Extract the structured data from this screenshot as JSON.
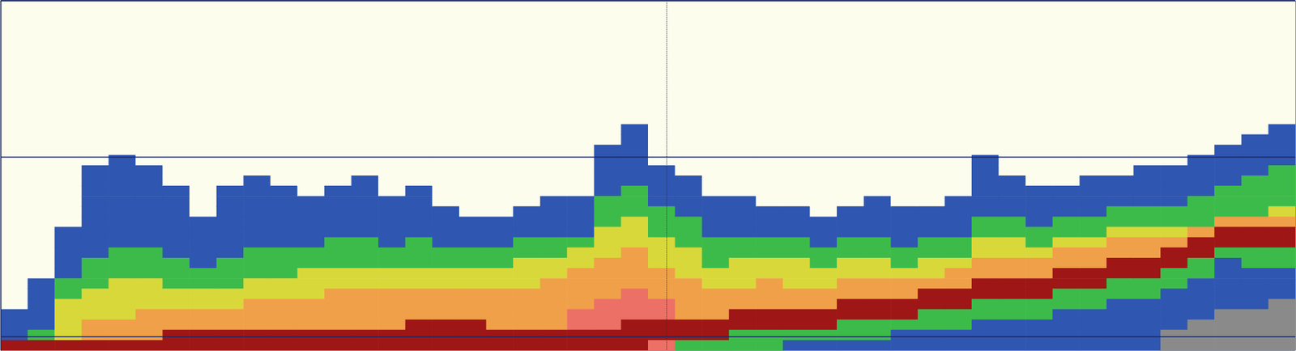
{
  "chart_data": {
    "type": "heatmap",
    "xlim": [
      0,
      48
    ],
    "ylim": [
      0,
      42.5
    ],
    "xticks": [
      24.7
    ],
    "yticks": [
      0,
      19,
      40.8
    ],
    "grid": true,
    "tick_labels": false,
    "cell_width": 1,
    "cell_height": 1.25,
    "colors": [
      "#fdfdee",
      "#8a8a8a",
      "#2f56b0",
      "#3dbb4a",
      "#d9d83a",
      "#f0a048",
      "#ec7066",
      "#9e1616"
    ],
    "cells": [
      [
        0,
        0,
        0,
        0,
        0,
        0,
        0,
        0,
        0,
        0,
        0,
        0,
        0,
        0,
        0,
        0,
        0,
        0,
        0,
        0,
        0,
        0,
        0,
        0,
        0,
        0,
        0,
        0,
        0,
        0,
        2,
        2,
        2,
        7
      ],
      [
        0,
        0,
        0,
        0,
        0,
        0,
        0,
        0,
        0,
        0,
        0,
        0,
        0,
        0,
        0,
        0,
        0,
        0,
        0,
        0,
        0,
        0,
        0,
        0,
        0,
        0,
        0,
        2,
        2,
        2,
        2,
        2,
        3,
        7
      ],
      [
        0,
        0,
        0,
        0,
        0,
        0,
        0,
        0,
        0,
        0,
        0,
        0,
        0,
        0,
        0,
        0,
        0,
        0,
        0,
        0,
        0,
        0,
        2,
        2,
        2,
        2,
        2,
        3,
        3,
        4,
        4,
        4,
        4,
        7
      ],
      [
        0,
        0,
        0,
        0,
        0,
        0,
        0,
        0,
        0,
        0,
        0,
        0,
        0,
        0,
        0,
        0,
        2,
        2,
        2,
        2,
        2,
        2,
        2,
        2,
        2,
        3,
        3,
        3,
        4,
        4,
        4,
        5,
        5,
        7
      ],
      [
        0,
        0,
        0,
        0,
        0,
        0,
        0,
        0,
        0,
        0,
        0,
        0,
        0,
        0,
        0,
        2,
        2,
        2,
        2,
        2,
        2,
        2,
        2,
        2,
        3,
        3,
        3,
        4,
        4,
        4,
        4,
        5,
        5,
        7
      ],
      [
        0,
        0,
        0,
        0,
        0,
        0,
        0,
        0,
        0,
        0,
        0,
        0,
        0,
        0,
        0,
        0,
        2,
        2,
        2,
        2,
        2,
        2,
        2,
        2,
        3,
        3,
        3,
        4,
        4,
        4,
        5,
        5,
        5,
        7
      ],
      [
        0,
        0,
        0,
        0,
        0,
        0,
        0,
        0,
        0,
        0,
        0,
        0,
        0,
        0,
        0,
        0,
        0,
        0,
        2,
        2,
        2,
        2,
        2,
        2,
        2,
        3,
        3,
        3,
        4,
        4,
        5,
        5,
        7,
        7
      ],
      [
        0,
        0,
        0,
        0,
        0,
        0,
        0,
        0,
        0,
        0,
        0,
        0,
        0,
        0,
        0,
        0,
        0,
        0,
        0,
        0,
        0,
        2,
        2,
        2,
        2,
        2,
        3,
        3,
        4,
        4,
        5,
        5,
        7,
        7
      ],
      [
        0,
        0,
        0,
        0,
        0,
        0,
        0,
        0,
        0,
        0,
        0,
        0,
        0,
        0,
        0,
        0,
        0,
        0,
        2,
        2,
        2,
        2,
        2,
        2,
        2,
        3,
        3,
        3,
        4,
        4,
        5,
        5,
        7,
        7
      ],
      [
        0,
        0,
        0,
        0,
        0,
        0,
        0,
        0,
        0,
        0,
        0,
        0,
        0,
        0,
        0,
        0,
        0,
        2,
        2,
        2,
        2,
        2,
        2,
        2,
        3,
        3,
        3,
        4,
        4,
        5,
        5,
        5,
        7,
        7
      ],
      [
        0,
        0,
        0,
        0,
        0,
        0,
        0,
        0,
        0,
        0,
        0,
        0,
        0,
        0,
        0,
        0,
        0,
        0,
        2,
        2,
        2,
        2,
        2,
        2,
        3,
        3,
        3,
        4,
        4,
        5,
        5,
        5,
        7,
        7
      ],
      [
        0,
        0,
        0,
        0,
        0,
        0,
        0,
        0,
        0,
        0,
        0,
        0,
        0,
        0,
        0,
        0,
        0,
        0,
        0,
        2,
        2,
        2,
        2,
        2,
        3,
        3,
        4,
        4,
        4,
        5,
        5,
        5,
        7,
        7
      ],
      [
        0,
        0,
        0,
        0,
        0,
        0,
        0,
        0,
        0,
        0,
        0,
        0,
        0,
        0,
        0,
        0,
        0,
        0,
        2,
        2,
        2,
        2,
        2,
        3,
        3,
        3,
        4,
        4,
        5,
        5,
        5,
        5,
        7,
        7
      ],
      [
        0,
        0,
        0,
        0,
        0,
        0,
        0,
        0,
        0,
        0,
        0,
        0,
        0,
        0,
        0,
        0,
        0,
        2,
        2,
        2,
        2,
        2,
        2,
        3,
        3,
        3,
        4,
        4,
        5,
        5,
        5,
        5,
        7,
        7
      ],
      [
        0,
        0,
        0,
        0,
        0,
        0,
        0,
        0,
        0,
        0,
        0,
        0,
        0,
        0,
        0,
        0,
        0,
        0,
        0,
        2,
        2,
        2,
        2,
        2,
        3,
        3,
        4,
        4,
        5,
        5,
        5,
        5,
        7,
        7
      ],
      [
        0,
        0,
        0,
        0,
        0,
        0,
        0,
        0,
        0,
        0,
        0,
        0,
        0,
        0,
        0,
        0,
        0,
        0,
        2,
        2,
        2,
        2,
        2,
        3,
        3,
        3,
        4,
        4,
        5,
        5,
        5,
        7,
        7,
        7
      ],
      [
        0,
        0,
        0,
        0,
        0,
        0,
        0,
        0,
        0,
        0,
        0,
        0,
        0,
        0,
        0,
        0,
        0,
        0,
        0,
        0,
        2,
        2,
        2,
        2,
        3,
        3,
        4,
        4,
        5,
        5,
        5,
        7,
        7,
        7
      ],
      [
        0,
        0,
        0,
        0,
        0,
        0,
        0,
        0,
        0,
        0,
        0,
        0,
        0,
        0,
        0,
        0,
        0,
        0,
        0,
        0,
        0,
        2,
        2,
        2,
        3,
        3,
        4,
        4,
        5,
        5,
        5,
        7,
        7,
        7
      ],
      [
        0,
        0,
        0,
        0,
        0,
        0,
        0,
        0,
        0,
        0,
        0,
        0,
        0,
        0,
        0,
        0,
        0,
        0,
        0,
        0,
        0,
        2,
        2,
        2,
        3,
        3,
        4,
        4,
        5,
        5,
        5,
        5,
        7,
        7
      ],
      [
        0,
        0,
        0,
        0,
        0,
        0,
        0,
        0,
        0,
        0,
        0,
        0,
        0,
        0,
        0,
        0,
        0,
        0,
        0,
        0,
        2,
        2,
        2,
        3,
        3,
        4,
        4,
        4,
        5,
        5,
        5,
        5,
        7,
        7
      ],
      [
        0,
        0,
        0,
        0,
        0,
        0,
        0,
        0,
        0,
        0,
        0,
        0,
        0,
        0,
        0,
        0,
        0,
        0,
        0,
        2,
        2,
        2,
        2,
        3,
        3,
        4,
        4,
        5,
        5,
        5,
        5,
        5,
        7,
        7
      ],
      [
        0,
        0,
        0,
        0,
        0,
        0,
        0,
        0,
        0,
        0,
        0,
        0,
        0,
        0,
        0,
        0,
        0,
        0,
        0,
        2,
        2,
        2,
        2,
        3,
        4,
        4,
        5,
        5,
        5,
        5,
        6,
        6,
        7,
        7
      ],
      [
        0,
        0,
        0,
        0,
        0,
        0,
        0,
        0,
        0,
        0,
        0,
        0,
        0,
        0,
        2,
        2,
        2,
        2,
        2,
        3,
        3,
        3,
        4,
        4,
        4,
        5,
        5,
        5,
        5,
        6,
        6,
        6,
        7,
        7
      ],
      [
        0,
        0,
        0,
        0,
        0,
        0,
        0,
        0,
        0,
        0,
        0,
        0,
        2,
        2,
        2,
        2,
        2,
        2,
        3,
        3,
        3,
        4,
        4,
        4,
        5,
        5,
        5,
        5,
        6,
        6,
        6,
        7,
        7,
        7
      ],
      [
        0,
        0,
        0,
        0,
        0,
        0,
        0,
        0,
        0,
        0,
        0,
        0,
        0,
        0,
        0,
        0,
        2,
        2,
        2,
        2,
        3,
        3,
        3,
        4,
        4,
        4,
        5,
        5,
        5,
        6,
        6,
        7,
        7,
        6
      ],
      [
        0,
        0,
        0,
        0,
        0,
        0,
        0,
        0,
        0,
        0,
        0,
        0,
        0,
        0,
        0,
        0,
        0,
        2,
        2,
        2,
        2,
        3,
        3,
        3,
        4,
        4,
        4,
        5,
        5,
        5,
        5,
        7,
        7,
        3
      ],
      [
        0,
        0,
        0,
        0,
        0,
        0,
        0,
        0,
        0,
        0,
        0,
        0,
        0,
        0,
        0,
        0,
        0,
        0,
        0,
        2,
        2,
        2,
        2,
        3,
        3,
        3,
        4,
        4,
        5,
        5,
        5,
        7,
        7,
        3
      ],
      [
        0,
        0,
        0,
        0,
        0,
        0,
        0,
        0,
        0,
        0,
        0,
        0,
        0,
        0,
        0,
        0,
        0,
        0,
        0,
        2,
        2,
        2,
        2,
        3,
        3,
        4,
        4,
        4,
        5,
        5,
        7,
        7,
        3,
        3
      ],
      [
        0,
        0,
        0,
        0,
        0,
        0,
        0,
        0,
        0,
        0,
        0,
        0,
        0,
        0,
        0,
        0,
        0,
        0,
        0,
        0,
        2,
        2,
        2,
        3,
        3,
        4,
        4,
        5,
        5,
        5,
        7,
        7,
        3,
        3
      ],
      [
        0,
        0,
        0,
        0,
        0,
        0,
        0,
        0,
        0,
        0,
        0,
        0,
        0,
        0,
        0,
        0,
        0,
        0,
        0,
        0,
        2,
        2,
        2,
        3,
        3,
        4,
        4,
        4,
        5,
        5,
        7,
        7,
        3,
        2
      ],
      [
        0,
        0,
        0,
        0,
        0,
        0,
        0,
        0,
        0,
        0,
        0,
        0,
        0,
        0,
        0,
        0,
        0,
        0,
        0,
        0,
        0,
        2,
        2,
        2,
        3,
        3,
        4,
        4,
        5,
        5,
        7,
        7,
        3,
        2
      ],
      [
        0,
        0,
        0,
        0,
        0,
        0,
        0,
        0,
        0,
        0,
        0,
        0,
        0,
        0,
        0,
        0,
        0,
        0,
        0,
        0,
        2,
        2,
        2,
        3,
        3,
        4,
        4,
        5,
        5,
        7,
        7,
        3,
        3,
        2
      ],
      [
        0,
        0,
        0,
        0,
        0,
        0,
        0,
        0,
        0,
        0,
        0,
        0,
        0,
        0,
        0,
        0,
        0,
        0,
        0,
        2,
        2,
        2,
        2,
        3,
        3,
        4,
        4,
        5,
        5,
        7,
        7,
        3,
        3,
        2
      ],
      [
        0,
        0,
        0,
        0,
        0,
        0,
        0,
        0,
        0,
        0,
        0,
        0,
        0,
        0,
        0,
        0,
        0,
        0,
        0,
        0,
        2,
        2,
        2,
        2,
        3,
        3,
        4,
        5,
        5,
        7,
        7,
        3,
        2,
        2
      ],
      [
        0,
        0,
        0,
        0,
        0,
        0,
        0,
        0,
        0,
        0,
        0,
        0,
        0,
        0,
        0,
        0,
        0,
        0,
        0,
        0,
        2,
        2,
        2,
        3,
        3,
        4,
        4,
        5,
        7,
        7,
        3,
        3,
        2,
        2
      ],
      [
        0,
        0,
        0,
        0,
        0,
        0,
        0,
        0,
        0,
        0,
        0,
        0,
        0,
        0,
        0,
        0,
        0,
        0,
        0,
        2,
        2,
        2,
        2,
        3,
        3,
        4,
        5,
        5,
        7,
        7,
        3,
        3,
        2,
        2
      ],
      [
        0,
        0,
        0,
        0,
        0,
        0,
        0,
        0,
        0,
        0,
        0,
        0,
        0,
        0,
        0,
        2,
        2,
        2,
        2,
        2,
        2,
        3,
        3,
        4,
        4,
        5,
        5,
        7,
        7,
        3,
        3,
        2,
        2,
        2
      ],
      [
        0,
        0,
        0,
        0,
        0,
        0,
        0,
        0,
        0,
        0,
        0,
        0,
        0,
        0,
        0,
        0,
        0,
        2,
        2,
        2,
        2,
        3,
        3,
        4,
        4,
        5,
        5,
        7,
        7,
        3,
        3,
        2,
        2,
        2
      ],
      [
        0,
        0,
        0,
        0,
        0,
        0,
        0,
        0,
        0,
        0,
        0,
        0,
        0,
        0,
        0,
        0,
        0,
        0,
        2,
        2,
        2,
        2,
        3,
        3,
        4,
        5,
        5,
        7,
        7,
        3,
        3,
        2,
        2,
        2
      ],
      [
        0,
        0,
        0,
        0,
        0,
        0,
        0,
        0,
        0,
        0,
        0,
        0,
        0,
        0,
        0,
        0,
        0,
        0,
        2,
        2,
        2,
        3,
        3,
        4,
        5,
        5,
        7,
        7,
        3,
        3,
        2,
        2,
        2,
        2
      ],
      [
        0,
        0,
        0,
        0,
        0,
        0,
        0,
        0,
        0,
        0,
        0,
        0,
        0,
        0,
        0,
        0,
        0,
        2,
        2,
        2,
        2,
        3,
        3,
        4,
        5,
        5,
        7,
        7,
        3,
        3,
        2,
        2,
        2,
        2
      ],
      [
        0,
        0,
        0,
        0,
        0,
        0,
        0,
        0,
        0,
        0,
        0,
        0,
        0,
        0,
        0,
        0,
        0,
        2,
        2,
        2,
        3,
        3,
        4,
        5,
        5,
        7,
        7,
        3,
        3,
        2,
        2,
        2,
        2,
        2
      ],
      [
        0,
        0,
        0,
        0,
        0,
        0,
        0,
        0,
        0,
        0,
        0,
        0,
        0,
        0,
        0,
        0,
        2,
        2,
        2,
        2,
        3,
        3,
        4,
        5,
        5,
        7,
        7,
        3,
        3,
        2,
        2,
        2,
        2,
        2
      ],
      [
        0,
        0,
        0,
        0,
        0,
        0,
        0,
        0,
        0,
        0,
        0,
        0,
        0,
        0,
        0,
        0,
        2,
        2,
        2,
        2,
        3,
        3,
        4,
        5,
        7,
        7,
        3,
        3,
        2,
        2,
        2,
        2,
        1,
        1
      ],
      [
        0,
        0,
        0,
        0,
        0,
        0,
        0,
        0,
        0,
        0,
        0,
        0,
        0,
        0,
        0,
        2,
        2,
        2,
        2,
        3,
        3,
        3,
        5,
        7,
        7,
        3,
        3,
        2,
        2,
        2,
        2,
        1,
        1,
        1
      ],
      [
        0,
        0,
        0,
        0,
        0,
        0,
        0,
        0,
        0,
        0,
        0,
        0,
        0,
        0,
        2,
        2,
        2,
        2,
        3,
        3,
        3,
        5,
        7,
        7,
        3,
        2,
        2,
        2,
        2,
        2,
        1,
        1,
        1,
        1
      ],
      [
        0,
        0,
        0,
        0,
        0,
        0,
        0,
        0,
        0,
        0,
        0,
        0,
        0,
        2,
        2,
        2,
        2,
        3,
        3,
        3,
        3,
        5,
        7,
        7,
        3,
        3,
        2,
        2,
        2,
        2,
        1,
        1,
        1,
        1
      ],
      [
        0,
        0,
        0,
        0,
        0,
        0,
        0,
        0,
        0,
        0,
        0,
        0,
        2,
        2,
        2,
        2,
        3,
        3,
        3,
        3,
        4,
        5,
        7,
        7,
        3,
        3,
        2,
        2,
        2,
        1,
        1,
        1,
        1,
        1
      ]
    ]
  }
}
